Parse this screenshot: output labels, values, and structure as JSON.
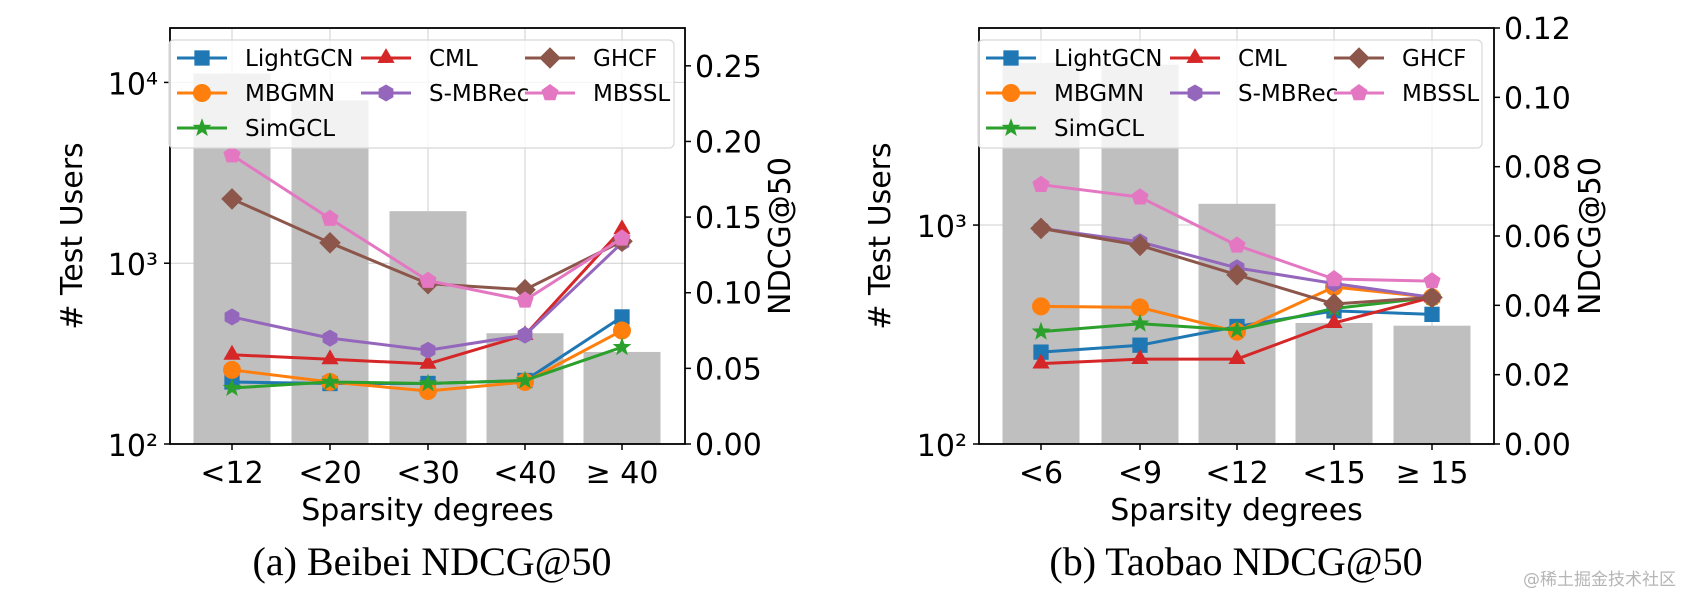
{
  "watermark": "@稀土掘金技术社区",
  "series_styles": [
    {
      "name": "LightGCN",
      "color": "#1f77b4",
      "marker": "square"
    },
    {
      "name": "MBGMN",
      "color": "#ff7f0e",
      "marker": "circle"
    },
    {
      "name": "SimGCL",
      "color": "#2ca02c",
      "marker": "star"
    },
    {
      "name": "CML",
      "color": "#d62728",
      "marker": "triangle"
    },
    {
      "name": "S-MBRec",
      "color": "#9467bd",
      "marker": "hexagon"
    },
    {
      "name": "GHCF",
      "color": "#8c564b",
      "marker": "diamond"
    },
    {
      "name": "MBSSL",
      "color": "#e377c2",
      "marker": "pentagon"
    }
  ],
  "bar_color": "#bfbfbf",
  "chart_data": [
    {
      "type": "bar+line",
      "title": "(a) Beibei NDCG@50",
      "xlabel": "Sparsity degrees",
      "ylabel_left": "# Test Users",
      "ylabel_right": "NDCG@50",
      "categories": [
        "<12",
        "<20",
        "<30",
        "<40",
        "≥ 40"
      ],
      "left_axis": {
        "scale": "log",
        "ylim": [
          100,
          20000
        ],
        "ticks": [
          100,
          1000,
          10000
        ],
        "tick_labels": [
          "10²",
          "10³",
          "10⁴"
        ]
      },
      "right_axis": {
        "scale": "linear",
        "ylim": [
          0,
          0.275
        ],
        "ticks": [
          0,
          0.05,
          0.1,
          0.15,
          0.2,
          0.25
        ],
        "tick_labels": [
          "0.00",
          "0.05",
          "0.10",
          "0.15",
          "0.20",
          "0.25"
        ]
      },
      "bars": {
        "name": "# Test Users",
        "values": [
          11200,
          7950,
          1940,
          410,
          323
        ]
      },
      "series": [
        {
          "name": "LightGCN",
          "values": [
            0.041,
            0.04,
            0.04,
            0.042,
            0.084
          ]
        },
        {
          "name": "MBGMN",
          "values": [
            0.049,
            0.041,
            0.035,
            0.041,
            0.075
          ]
        },
        {
          "name": "SimGCL",
          "values": [
            0.037,
            0.041,
            0.04,
            0.042,
            0.064
          ]
        },
        {
          "name": "CML",
          "values": [
            0.059,
            0.056,
            0.053,
            0.072,
            0.142
          ]
        },
        {
          "name": "S-MBRec",
          "values": [
            0.084,
            0.07,
            0.062,
            0.072,
            0.133
          ]
        },
        {
          "name": "GHCF",
          "values": [
            0.162,
            0.133,
            0.106,
            0.102,
            0.134
          ]
        },
        {
          "name": "MBSSL",
          "values": [
            0.191,
            0.149,
            0.108,
            0.095,
            0.136
          ]
        }
      ],
      "legend": {
        "placement": "top",
        "columns": 3
      },
      "grid": true
    },
    {
      "type": "bar+line",
      "title": "(b) Taobao NDCG@50",
      "xlabel": "Sparsity degrees",
      "ylabel_left": "# Test Users",
      "ylabel_right": "NDCG@50",
      "categories": [
        "<6",
        "<9",
        "<12",
        "<15",
        "≥ 15"
      ],
      "left_axis": {
        "scale": "log",
        "ylim": [
          100,
          7943
        ],
        "ticks": [
          100,
          1000
        ],
        "tick_labels": [
          "10²",
          "10³"
        ]
      },
      "right_axis": {
        "scale": "linear",
        "ylim": [
          0,
          0.12
        ],
        "ticks": [
          0,
          0.02,
          0.04,
          0.06,
          0.08,
          0.1,
          0.12
        ],
        "tick_labels": [
          "0.00",
          "0.02",
          "0.04",
          "0.06",
          "0.08",
          "0.10",
          "0.12"
        ]
      },
      "bars": {
        "name": "# Test Users",
        "values": [
          5500,
          5400,
          1250,
          357,
          347
        ]
      },
      "series": [
        {
          "name": "LightGCN",
          "values": [
            0.0265,
            0.0285,
            0.0339,
            0.0384,
            0.0374
          ]
        },
        {
          "name": "MBGMN",
          "values": [
            0.0397,
            0.0394,
            0.0324,
            0.0453,
            0.0423
          ]
        },
        {
          "name": "SimGCL",
          "values": [
            0.0324,
            0.0347,
            0.0329,
            0.0391,
            0.0423
          ]
        },
        {
          "name": "CML",
          "values": [
            0.0232,
            0.0245,
            0.0245,
            0.0349,
            0.0423
          ]
        },
        {
          "name": "S-MBRec",
          "values": [
            0.0622,
            0.0583,
            0.0508,
            0.0463,
            0.0423
          ]
        },
        {
          "name": "GHCF",
          "values": [
            0.0622,
            0.0573,
            0.0488,
            0.0404,
            0.0423
          ]
        },
        {
          "name": "MBSSL",
          "values": [
            0.0748,
            0.0712,
            0.0573,
            0.0476,
            0.047
          ]
        }
      ],
      "legend": {
        "placement": "top",
        "columns": 3
      },
      "grid": true
    }
  ]
}
